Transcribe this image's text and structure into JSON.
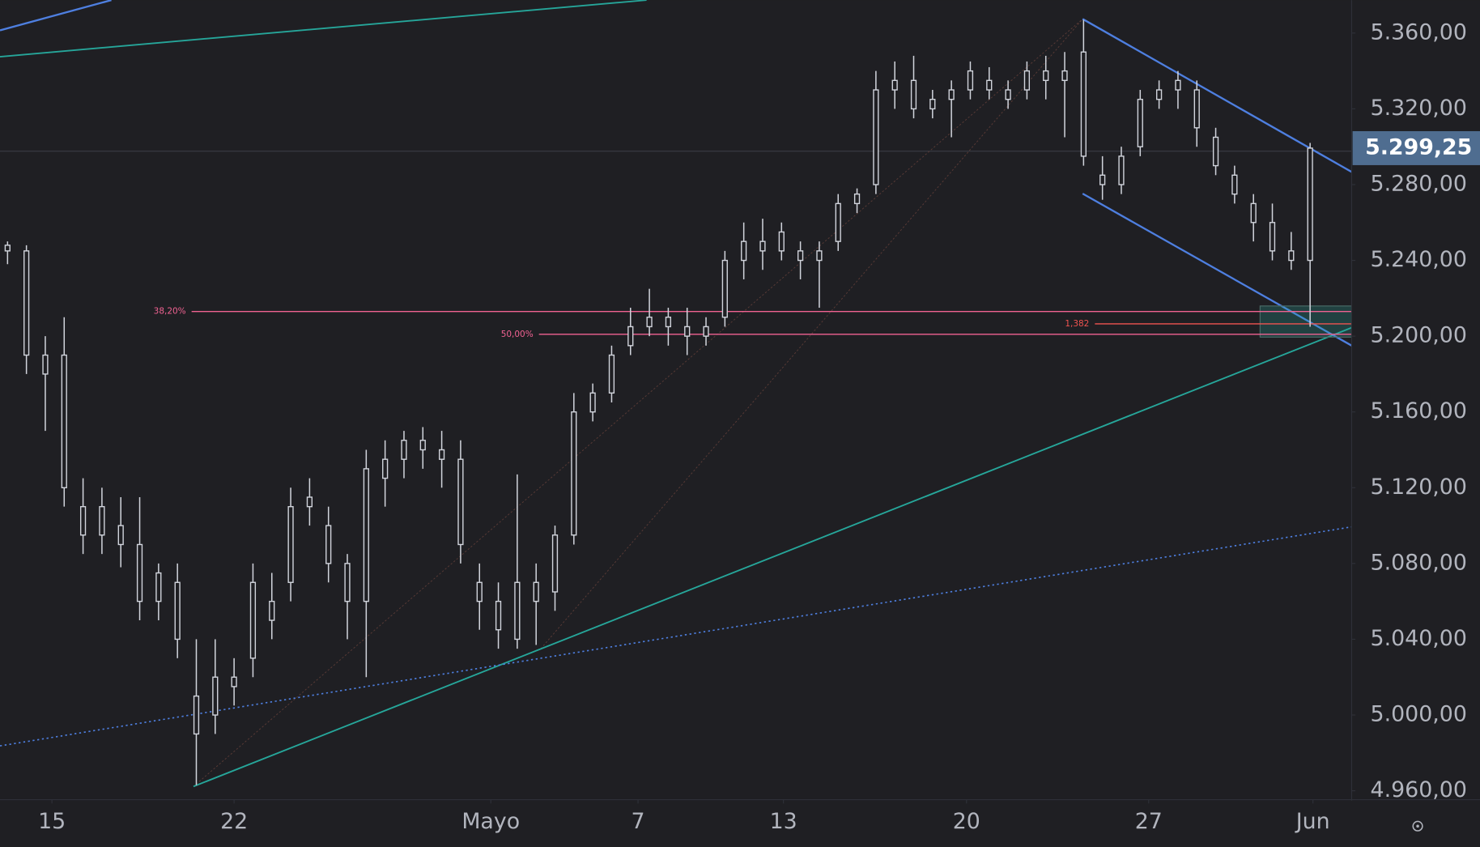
{
  "chart_data": {
    "type": "candlestick",
    "x": [
      0,
      1,
      2,
      3,
      4,
      5,
      6,
      7,
      8,
      9,
      10,
      11,
      12,
      13,
      14,
      15,
      16,
      17,
      18,
      19,
      20,
      21,
      22,
      23,
      24,
      25,
      26,
      27,
      28,
      29,
      30,
      31,
      32,
      33,
      34,
      35,
      36,
      37,
      38,
      39,
      40,
      41,
      42,
      43,
      44,
      45,
      46,
      47,
      48,
      49,
      50,
      51,
      52,
      53,
      54,
      55,
      56,
      57,
      58,
      59,
      60,
      61,
      62,
      63,
      64,
      65,
      66,
      67,
      68,
      69
    ],
    "ohlc": [
      [
        5245,
        5250,
        5238,
        5248
      ],
      [
        5245,
        5248,
        5180,
        5190
      ],
      [
        5190,
        5200,
        5150,
        5180
      ],
      [
        5190,
        5210,
        5110,
        5120
      ],
      [
        5110,
        5125,
        5085,
        5095
      ],
      [
        5095,
        5120,
        5085,
        5110
      ],
      [
        5100,
        5115,
        5078,
        5090
      ],
      [
        5090,
        5115,
        5050,
        5060
      ],
      [
        5060,
        5080,
        5050,
        5075
      ],
      [
        5070,
        5080,
        5030,
        5040
      ],
      [
        5010,
        5040,
        4963,
        4990
      ],
      [
        5000,
        5040,
        4990,
        5020
      ],
      [
        5020,
        5030,
        5005,
        5015
      ],
      [
        5030,
        5080,
        5020,
        5070
      ],
      [
        5050,
        5075,
        5040,
        5060
      ],
      [
        5070,
        5120,
        5060,
        5110
      ],
      [
        5110,
        5125,
        5100,
        5115
      ],
      [
        5100,
        5110,
        5070,
        5080
      ],
      [
        5080,
        5085,
        5040,
        5060
      ],
      [
        5060,
        5140,
        5020,
        5130
      ],
      [
        5125,
        5145,
        5110,
        5135
      ],
      [
        5135,
        5150,
        5125,
        5145
      ],
      [
        5145,
        5152,
        5130,
        5140
      ],
      [
        5140,
        5150,
        5120,
        5135
      ],
      [
        5135,
        5145,
        5080,
        5090
      ],
      [
        5070,
        5080,
        5045,
        5060
      ],
      [
        5060,
        5070,
        5035,
        5045
      ],
      [
        5040,
        5127,
        5035,
        5070
      ],
      [
        5070,
        5080,
        5037,
        5060
      ],
      [
        5065,
        5100,
        5055,
        5095
      ],
      [
        5095,
        5170,
        5090,
        5160
      ],
      [
        5160,
        5175,
        5155,
        5170
      ],
      [
        5170,
        5195,
        5165,
        5190
      ],
      [
        5195,
        5215,
        5190,
        5205
      ],
      [
        5205,
        5225,
        5200,
        5210
      ],
      [
        5210,
        5215,
        5195,
        5205
      ],
      [
        5205,
        5215,
        5190,
        5200
      ],
      [
        5200,
        5210,
        5195,
        5205
      ],
      [
        5210,
        5245,
        5205,
        5240
      ],
      [
        5240,
        5260,
        5230,
        5250
      ],
      [
        5250,
        5262,
        5235,
        5245
      ],
      [
        5245,
        5260,
        5240,
        5255
      ],
      [
        5245,
        5250,
        5230,
        5240
      ],
      [
        5240,
        5250,
        5215,
        5245
      ],
      [
        5250,
        5275,
        5245,
        5270
      ],
      [
        5270,
        5278,
        5265,
        5275
      ],
      [
        5280,
        5340,
        5275,
        5330
      ],
      [
        5330,
        5345,
        5320,
        5335
      ],
      [
        5335,
        5348,
        5315,
        5320
      ],
      [
        5320,
        5330,
        5315,
        5325
      ],
      [
        5325,
        5335,
        5305,
        5330
      ],
      [
        5330,
        5345,
        5325,
        5340
      ],
      [
        5335,
        5342,
        5325,
        5330
      ],
      [
        5330,
        5335,
        5320,
        5325
      ],
      [
        5330,
        5345,
        5325,
        5340
      ],
      [
        5340,
        5348,
        5325,
        5335
      ],
      [
        5335,
        5350,
        5305,
        5340
      ],
      [
        5350,
        5367,
        5290,
        5295
      ],
      [
        5285,
        5295,
        5272,
        5280
      ],
      [
        5280,
        5300,
        5275,
        5295
      ],
      [
        5300,
        5330,
        5295,
        5325
      ],
      [
        5325,
        5335,
        5320,
        5330
      ],
      [
        5330,
        5340,
        5320,
        5335
      ],
      [
        5330,
        5335,
        5300,
        5310
      ],
      [
        5305,
        5310,
        5285,
        5290
      ],
      [
        5285,
        5290,
        5270,
        5275
      ],
      [
        5270,
        5275,
        5250,
        5260
      ],
      [
        5260,
        5270,
        5240,
        5245
      ],
      [
        5245,
        5255,
        5235,
        5240
      ],
      [
        5240,
        5302,
        5205,
        5299.25
      ]
    ],
    "color": "#d1d4dc",
    "xlim": [
      -0.4,
      71.2
    ],
    "xticks": [
      {
        "value": 2.35,
        "label": "15"
      },
      {
        "value": 12.0,
        "label": "22"
      },
      {
        "value": 25.6,
        "label": "Mayo"
      },
      {
        "value": 33.4,
        "label": "7"
      },
      {
        "value": 41.1,
        "label": "13"
      },
      {
        "value": 50.8,
        "label": "20"
      },
      {
        "value": 60.45,
        "label": "27"
      },
      {
        "value": 69.15,
        "label": "Jun"
      }
    ],
    "ylim": [
      4955.3,
      5377.4
    ],
    "yticks": [
      {
        "value": 4960,
        "label": "4.960,00"
      },
      {
        "value": 5000,
        "label": "5.000,00"
      },
      {
        "value": 5040,
        "label": "5.040,00"
      },
      {
        "value": 5080,
        "label": "5.080,00"
      },
      {
        "value": 5120,
        "label": "5.120,00"
      },
      {
        "value": 5160,
        "label": "5.160,00"
      },
      {
        "value": 5200,
        "label": "5.200,00"
      },
      {
        "value": 5240,
        "label": "5.240,00"
      },
      {
        "value": 5280,
        "label": "5.280,00"
      },
      {
        "value": 5320,
        "label": "5.320,00"
      },
      {
        "value": 5360,
        "label": "5.360,00"
      }
    ],
    "last_price": {
      "value": 5299.25,
      "label": "5.299,25"
    },
    "levels": [
      {
        "label": "38,20%",
        "value": 5213
      },
      {
        "label": "50,00%",
        "value": 5201
      },
      {
        "label": "1,382",
        "value": 5206.5
      }
    ]
  }
}
